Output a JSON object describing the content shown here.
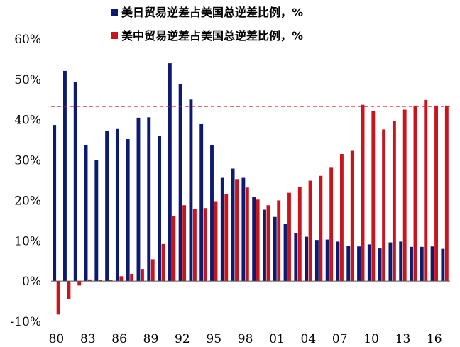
{
  "chart_data": {
    "type": "bar",
    "x": [
      1980,
      1981,
      1982,
      1983,
      1984,
      1985,
      1986,
      1987,
      1988,
      1989,
      1990,
      1991,
      1992,
      1993,
      1994,
      1995,
      1996,
      1997,
      1998,
      1999,
      2000,
      2001,
      2002,
      2003,
      2004,
      2005,
      2006,
      2007,
      2008,
      2009,
      2010,
      2011,
      2012,
      2013,
      2014,
      2015,
      2016,
      2017
    ],
    "x_tick_labels": [
      "80",
      "83",
      "86",
      "89",
      "92",
      "95",
      "98",
      "01",
      "04",
      "07",
      "10",
      "13",
      "16"
    ],
    "x_tick_years": [
      1980,
      1983,
      1986,
      1989,
      1992,
      1995,
      1998,
      2001,
      2004,
      2007,
      2010,
      2013,
      2016
    ],
    "y_tick_labels": [
      "60%",
      "50%",
      "40%",
      "30%",
      "20%",
      "10%",
      "0%",
      "-10%"
    ],
    "y_tick_values": [
      60,
      50,
      40,
      30,
      20,
      10,
      0,
      -10
    ],
    "ylim": [
      -10,
      60
    ],
    "unit": "%",
    "reference_line": 43.3,
    "colors": {
      "japan": "#0d1a70",
      "china": "#c8141d",
      "reference": "#d02020"
    },
    "series": [
      {
        "name": "美日贸易逆差占美国总逆差比例，%",
        "key": "japan",
        "values": [
          38.7,
          52.1,
          49.3,
          33.7,
          30.1,
          37.3,
          37.7,
          35.2,
          40.5,
          40.6,
          36.0,
          54.0,
          48.8,
          45.0,
          38.9,
          33.7,
          25.6,
          27.9,
          25.6,
          20.8,
          17.7,
          15.9,
          14.2,
          11.9,
          11.0,
          10.2,
          10.3,
          9.8,
          8.7,
          8.6,
          9.1,
          8.1,
          9.6,
          9.8,
          8.5,
          8.5,
          8.6,
          8.0
        ]
      },
      {
        "name": "美中贸易逆差占美国总逆差比例，%",
        "key": "china",
        "values": [
          -8.3,
          -4.5,
          -1.1,
          0.4,
          0.3,
          0.2,
          1.2,
          1.8,
          3.0,
          5.4,
          9.2,
          16.1,
          18.8,
          17.8,
          18.1,
          19.8,
          21.5,
          25.3,
          23.2,
          20.2,
          18.8,
          20.0,
          21.9,
          23.3,
          24.9,
          26.1,
          28.1,
          31.5,
          32.3,
          43.7,
          42.2,
          37.6,
          39.7,
          42.5,
          43.5,
          44.9,
          43.5,
          43.5
        ]
      }
    ]
  }
}
